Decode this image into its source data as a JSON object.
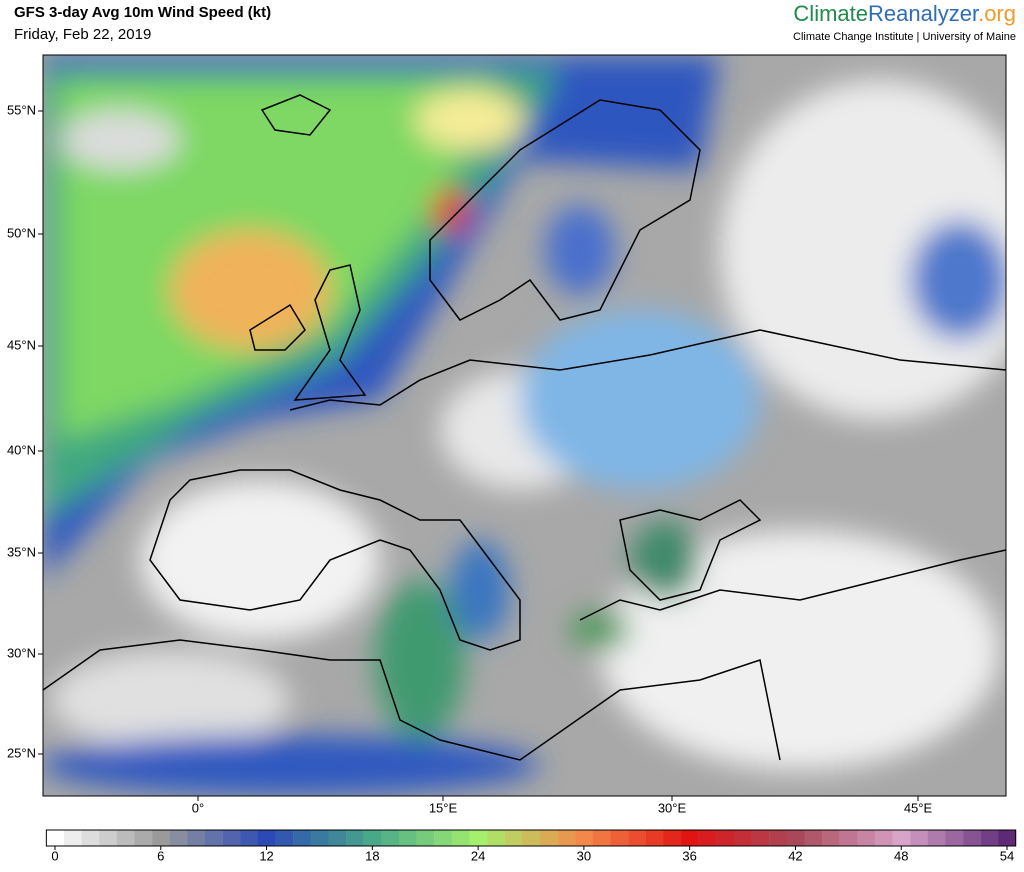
{
  "header": {
    "title": "GFS 3-day Avg 10m Wind Speed (kt)",
    "date": "Friday, Feb 22, 2019",
    "brand_part1": "Climate",
    "brand_part2": "Reanalyzer",
    "brand_part3": ".org",
    "affiliation": "Climate Change Institute | University of Maine"
  },
  "map": {
    "lat_labels": [
      "55°N",
      "50°N",
      "45°N",
      "40°N",
      "35°N",
      "30°N",
      "25°N"
    ],
    "lon_labels": [
      "0°",
      "15°E",
      "30°E",
      "45°E"
    ]
  },
  "colorbar": {
    "ticks": [
      0,
      6,
      12,
      18,
      24,
      30,
      36,
      42,
      48,
      54
    ],
    "stop_colors": [
      "#ffffff",
      "#9a9a9a",
      "#2c49b6",
      "#4aa88a",
      "#a4f06c",
      "#f4884a",
      "#e01414",
      "#a84858",
      "#d8a4c8",
      "#5e2a78"
    ]
  }
}
